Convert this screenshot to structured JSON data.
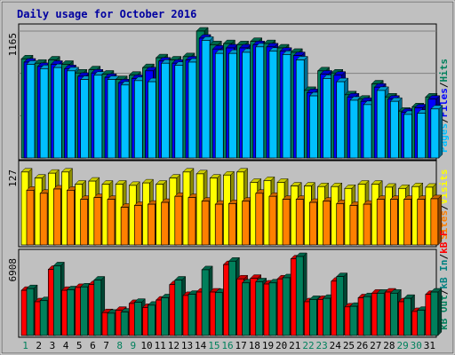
{
  "chart_data": [
    {
      "type": "bar",
      "title": "Daily usage for October 2016",
      "y_max_label": "1165",
      "categories": [
        "1",
        "2",
        "3",
        "4",
        "5",
        "6",
        "7",
        "8",
        "9",
        "10",
        "11",
        "12",
        "13",
        "14",
        "15",
        "16",
        "17",
        "18",
        "19",
        "20",
        "21",
        "22",
        "23",
        "24",
        "25",
        "26",
        "27",
        "28",
        "29",
        "30",
        "31"
      ],
      "weekend_days": [
        "1",
        "8",
        "9",
        "15",
        "16",
        "22",
        "23",
        "29",
        "30"
      ],
      "ylim": [
        0,
        1165
      ],
      "legend": [
        {
          "label": "Hits",
          "color": "#00805c"
        },
        {
          "label": "/",
          "color": "#000000"
        },
        {
          "label": "Files",
          "color": "#0000ff"
        },
        {
          "label": "/",
          "color": "#000000"
        },
        {
          "label": "Pages",
          "color": "#00c0ff"
        }
      ],
      "series": [
        {
          "name": "Hits",
          "color": "#00805c",
          "values": [
            910,
            870,
            900,
            860,
            780,
            810,
            770,
            720,
            760,
            830,
            920,
            900,
            930,
            1165,
            1040,
            1050,
            1040,
            1070,
            1050,
            1010,
            970,
            620,
            800,
            780,
            580,
            540,
            680,
            560,
            430,
            470,
            560
          ]
        },
        {
          "name": "Files",
          "color": "#0000ff",
          "values": [
            880,
            840,
            860,
            820,
            750,
            780,
            740,
            690,
            730,
            800,
            890,
            870,
            900,
            1100,
            1000,
            1010,
            1010,
            1040,
            1020,
            980,
            940,
            600,
            770,
            760,
            560,
            520,
            650,
            540,
            420,
            460,
            540
          ]
        },
        {
          "name": "Pages",
          "color": "#00c0ff",
          "values": [
            860,
            820,
            830,
            800,
            720,
            760,
            720,
            670,
            710,
            700,
            870,
            850,
            880,
            1080,
            960,
            960,
            970,
            1020,
            980,
            950,
            900,
            570,
            730,
            700,
            530,
            490,
            620,
            520,
            400,
            410,
            450
          ]
        }
      ]
    },
    {
      "type": "bar",
      "y_max_label": "127",
      "ylim": [
        0,
        127
      ],
      "categories": [
        "1",
        "2",
        "3",
        "4",
        "5",
        "6",
        "7",
        "8",
        "9",
        "10",
        "11",
        "12",
        "13",
        "14",
        "15",
        "16",
        "17",
        "18",
        "19",
        "20",
        "21",
        "22",
        "23",
        "24",
        "25",
        "26",
        "27",
        "28",
        "29",
        "30",
        "31"
      ],
      "legend": [
        {
          "label": "Visits",
          "color": "#ffff00"
        },
        {
          "label": "/",
          "color": "#000000"
        },
        {
          "label": "Sites",
          "color": "#ff8000"
        }
      ],
      "series": [
        {
          "name": "Visits",
          "color": "#ffff00",
          "values": [
            120,
            110,
            118,
            120,
            100,
            105,
            100,
            100,
            98,
            102,
            100,
            110,
            120,
            117,
            110,
            115,
            120,
            103,
            106,
            103,
            97,
            97,
            96,
            96,
            93,
            100,
            100,
            95,
            93,
            96,
            95
          ]
        },
        {
          "name": "Sites",
          "color": "#ff8000",
          "values": [
            90,
            85,
            92,
            90,
            75,
            78,
            75,
            62,
            65,
            67,
            70,
            80,
            78,
            72,
            67,
            68,
            72,
            85,
            80,
            75,
            75,
            70,
            72,
            68,
            65,
            67,
            75,
            75,
            75,
            75,
            76
          ]
        }
      ]
    },
    {
      "type": "bar",
      "y_max_label": "6908",
      "ylim": [
        0,
        6908
      ],
      "categories": [
        "1",
        "2",
        "3",
        "4",
        "5",
        "6",
        "7",
        "8",
        "9",
        "10",
        "11",
        "12",
        "13",
        "14",
        "15",
        "16",
        "17",
        "18",
        "19",
        "20",
        "21",
        "22",
        "23",
        "24",
        "25",
        "26",
        "27",
        "28",
        "29",
        "30",
        "31"
      ],
      "legend": [
        {
          "label": "kB F",
          "color": "#ff0000"
        },
        {
          "label": "/",
          "color": "#000000"
        },
        {
          "label": "kB In",
          "color": "#008080"
        },
        {
          "label": "/",
          "color": "#000000"
        },
        {
          "label": "kB Out",
          "color": "#00805c"
        }
      ],
      "series": [
        {
          "name": "kB F",
          "color": "#ff0000",
          "values": [
            3950,
            2950,
            5780,
            3950,
            4200,
            4450,
            2000,
            2200,
            2800,
            2450,
            3100,
            4450,
            3500,
            3800,
            3800,
            6200,
            4950,
            5000,
            4500,
            4950,
            6700,
            2950,
            3150,
            4750,
            2500,
            3300,
            3700,
            3800,
            2950,
            2100,
            3600
          ]
        },
        {
          "name": "kB Out",
          "color": "#00805c",
          "values": [
            4100,
            3050,
            6100,
            4000,
            4250,
            4850,
            1950,
            2050,
            2900,
            2650,
            3300,
            4850,
            3600,
            5750,
            3750,
            6500,
            4600,
            4700,
            4600,
            5050,
            6908,
            3150,
            3250,
            5150,
            2550,
            3400,
            3700,
            3700,
            3250,
            2200,
            3800
          ]
        }
      ]
    }
  ]
}
